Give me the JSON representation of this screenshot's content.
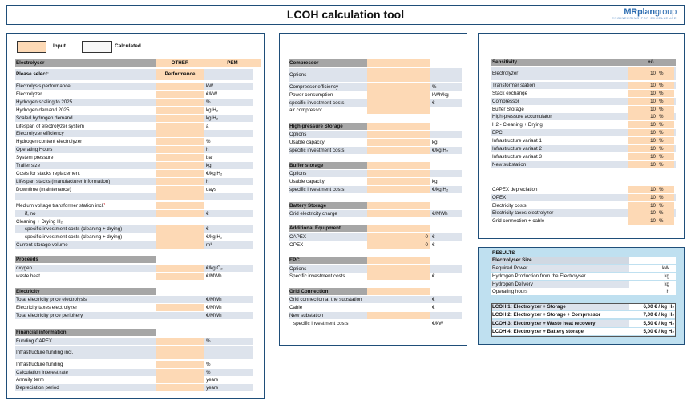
{
  "title": "LCOH calculation tool",
  "logo": {
    "part1": "MRplan",
    "part2": "group",
    "tagline": "ENGINEERING FOR EXCELLENCE"
  },
  "legend": {
    "input": "Input",
    "calculated": "Calculated"
  },
  "colors": {
    "input": "#fdd9b5",
    "header": "#a6a6a6",
    "border": "#1f4e79",
    "results_bg": "#bfe0f0"
  },
  "left": {
    "electrolyser_header": "Electrolyser",
    "col_other": "OTHER",
    "col_pem": "PEM",
    "please_select": "Please select:",
    "performance": "Performance",
    "rows": [
      {
        "label": "Electrolysis performance",
        "unit": "kW"
      },
      {
        "label": "Electrolyzer",
        "unit": "€/kW"
      },
      {
        "label": "Hydrogen scaling to 2025",
        "unit": "%"
      },
      {
        "label": "Hydrogen demand 2025",
        "unit": "kg H₂"
      },
      {
        "label": "Scaled hydrogen demand",
        "unit": "kg H₂"
      },
      {
        "label": "Lifespan of electrolyzer system",
        "unit": "a"
      },
      {
        "label": "Electrolyzer efficiency",
        "unit": ""
      },
      {
        "label": "Hydrogen content electrolyzer",
        "unit": "%"
      },
      {
        "label": "Operating Hours",
        "unit": "h"
      },
      {
        "label": "System pressure",
        "unit": "bar"
      },
      {
        "label": "Trailer size",
        "unit": "kg"
      },
      {
        "label": "Costs for stacks replacement",
        "unit": "€/kg H₂"
      },
      {
        "label": "Lifespan stacks (manufacturer information)",
        "unit": "h"
      },
      {
        "label": "Downtime (maintenance)",
        "unit": "days"
      }
    ],
    "medium_voltage": "Medium voltage transformer station incl.",
    "mv_sup": "1",
    "if_no": "if, no",
    "if_no_unit": "€",
    "cleaning": "Cleaning + Drying H₂",
    "spec_inv_1": "specific investment costs (cleaning + drying)",
    "spec_inv_1_unit": "€",
    "spec_inv_2": "specific investment costs (cleaning + drying)",
    "spec_inv_2_unit": "€/kg H₂",
    "storage_volume": "Current storage volume",
    "storage_volume_unit": "m³",
    "proceeds_header": "Proceeds",
    "proceeds": [
      {
        "label": "oxygen",
        "unit": "€/kg O₂"
      },
      {
        "label": "waste heat",
        "unit": "€/MWh"
      }
    ],
    "electricity_header": "Electricity",
    "electricity": [
      {
        "label": "Total electricity price electrolysis",
        "unit": "€/MWh"
      },
      {
        "label": "Electricity taxes electrolyzer",
        "unit": "€/MWh"
      },
      {
        "label": "Total electricity price periphery",
        "unit": "€/MWh"
      }
    ],
    "financial_header": "Financial information",
    "funding_capex": "Funding CAPEX",
    "funding_capex_unit": "%",
    "infra_funding_incl": "Infrastructure funding incl.",
    "financial": [
      {
        "label": "Infrastructure funding",
        "unit": "%"
      },
      {
        "label": "Calculation interest rate",
        "unit": "%"
      },
      {
        "label": "Annuity term",
        "unit": "years"
      },
      {
        "label": "Depreciation period",
        "unit": "years"
      }
    ]
  },
  "middle": {
    "compressor_header": "Compressor",
    "options": "Options",
    "compressor": [
      {
        "label": "Compressor efficiency",
        "unit": "%"
      },
      {
        "label": "Power consumption",
        "unit": "kWh/kg"
      },
      {
        "label": "specific investment costs",
        "unit": "€"
      },
      {
        "label": "air compressor",
        "unit": ""
      }
    ],
    "hp_header": "High-pressure Storage",
    "hp": [
      {
        "label": "Options",
        "unit": ""
      },
      {
        "label": "Usable capacity",
        "unit": "kg"
      },
      {
        "label": "specific investment costs",
        "unit": "€/kg H₂"
      }
    ],
    "buffer_header": "Buffer storage",
    "buffer": [
      {
        "label": "Options",
        "unit": ""
      },
      {
        "label": "Usable capacity",
        "unit": "kg"
      },
      {
        "label": "specific investment costs",
        "unit": "€/kg H₂"
      }
    ],
    "battery_header": "Battery Storage",
    "battery_charge": "Grid electricity charge",
    "battery_charge_unit": "€/MWh",
    "additional_header": "Additional Equipment",
    "additional": [
      {
        "label": "CAPEX",
        "value": "0",
        "unit": "€"
      },
      {
        "label": "OPEX",
        "value": "0",
        "unit": "€"
      }
    ],
    "epc_header": "EPC",
    "epc": [
      {
        "label": "Options",
        "unit": ""
      },
      {
        "label": "Specific investment costs",
        "unit": "€"
      }
    ],
    "grid_header": "Grid Connection",
    "grid": [
      {
        "label": "Grid connection at the substation",
        "unit": "€"
      },
      {
        "label": "Cable",
        "unit": "€"
      },
      {
        "label": "New substation",
        "unit": ""
      },
      {
        "label": "specific investment costs",
        "unit": "€/kW"
      }
    ]
  },
  "sensitivity": {
    "header": "Sensitivity",
    "pm": "+/-",
    "rows1": [
      {
        "label": "Electrolyzer",
        "value": "10",
        "unit": "%"
      },
      {
        "label": "Transformer station",
        "value": "10",
        "unit": "%"
      },
      {
        "label": "Stack exchange",
        "value": "10",
        "unit": "%"
      },
      {
        "label": "Compressor",
        "value": "10",
        "unit": "%"
      },
      {
        "label": "Buffer Storage",
        "value": "10",
        "unit": "%"
      },
      {
        "label": "High-pressure accumulator",
        "value": "10",
        "unit": "%"
      },
      {
        "label": "H2 - Cleaning + Drying",
        "value": "10",
        "unit": "%"
      },
      {
        "label": "EPC",
        "value": "10",
        "unit": "%"
      },
      {
        "label": "Infrastructure variant 1",
        "value": "10",
        "unit": "%"
      },
      {
        "label": "Infrastructure variant 2",
        "value": "10",
        "unit": "%"
      },
      {
        "label": "Infrastructure variant 3",
        "value": "10",
        "unit": "%"
      },
      {
        "label": "New substation",
        "value": "10",
        "unit": "%"
      }
    ],
    "rows2": [
      {
        "label": "CAPEX depreciation",
        "value": "10",
        "unit": "%"
      },
      {
        "label": "OPEX",
        "value": "10",
        "unit": "%"
      },
      {
        "label": "Electricity costs",
        "value": "10",
        "unit": "%"
      },
      {
        "label": "Electricity taxes electrolyzer",
        "value": "10",
        "unit": "%"
      },
      {
        "label": "Grid connection  + cable",
        "value": "10",
        "unit": "%"
      }
    ]
  },
  "results": {
    "title": "RESULTS",
    "size_header": "Electrolyser Size",
    "size_rows": [
      {
        "label": "Required Power",
        "unit": "kW"
      },
      {
        "label": "Hydrogen Production from the Electrolyser",
        "unit": "kg"
      },
      {
        "label": "Hydrogen Delivery",
        "unit": "kg"
      },
      {
        "label": "Operating hours",
        "unit": "h"
      }
    ],
    "lcoh": [
      {
        "label": "LCOH 1: Electrolyzer + Storage",
        "value": "6,00 € / kg H₂"
      },
      {
        "label": "LCOH 2: Electrolyzer + Storage + Compressor",
        "value": "7,00 € / kg H₂"
      },
      {
        "label": "LCOH 3: Electrolyzer + Waste heat recovery",
        "value": "5,50 € / kg H₂"
      },
      {
        "label": "LCOH 4: Electrolyzer + Battery storage",
        "value": "5,00 € / kg H₂"
      }
    ]
  }
}
